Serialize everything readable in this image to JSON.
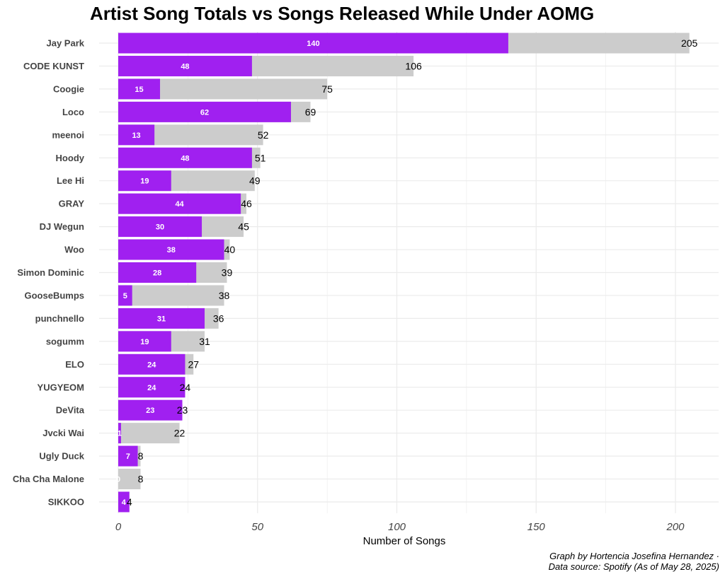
{
  "chart_data": {
    "type": "bar",
    "orientation": "horizontal",
    "title": "Artist Song Totals vs Songs Released While Under AOMG",
    "xlabel": "Number of Songs",
    "ylabel": "",
    "xlim": [
      0,
      210
    ],
    "xticks": [
      0,
      50,
      100,
      150,
      200
    ],
    "grid": true,
    "caption": [
      "Graph by Hortencia Josefina Hernandez ·",
      "Data source: Spotify (As of May 28, 2025)"
    ],
    "colors": {
      "aomg": "#A020F0",
      "total": "#CCCCCC",
      "grid": "#EBEBEB"
    },
    "categories": [
      "Jay Park",
      "CODE KUNST",
      "Coogie",
      "Loco",
      "meenoi",
      "Hoody",
      "Lee Hi",
      "GRAY",
      "DJ Wegun",
      "Woo",
      "Simon Dominic",
      "GooseBumps",
      "punchnello",
      "sogumm",
      "ELO",
      "YUGYEOM",
      "DeVita",
      "Jvcki Wai",
      "Ugly Duck",
      "Cha Cha Malone",
      "SIKKOO"
    ],
    "series": [
      {
        "name": "Total Songs",
        "values": [
          205,
          106,
          75,
          69,
          52,
          51,
          49,
          46,
          45,
          40,
          39,
          38,
          36,
          31,
          27,
          24,
          23,
          22,
          8,
          8,
          4
        ]
      },
      {
        "name": "Songs Under AOMG",
        "values": [
          140,
          48,
          15,
          62,
          13,
          48,
          19,
          44,
          30,
          38,
          28,
          5,
          31,
          19,
          24,
          24,
          23,
          1,
          7,
          0,
          4
        ]
      }
    ]
  }
}
